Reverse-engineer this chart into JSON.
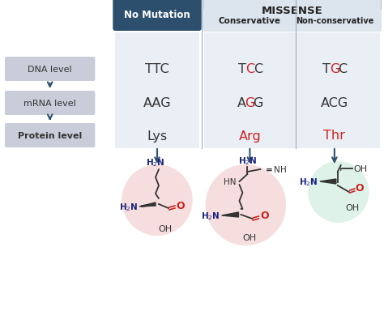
{
  "bg_color": "#ffffff",
  "missense_header": "MISSENSE",
  "no_mutation_label": "No Mutation",
  "conservative_label": "Conservative",
  "nonconservative_label": "Non-conservative",
  "row_labels": [
    "DNA level",
    "mRNA level",
    "Protein level"
  ],
  "dna_row": [
    [
      {
        "t": "TTC",
        "c": "#333333"
      }
    ],
    [
      {
        "t": "T",
        "c": "#333333"
      },
      {
        "t": "C",
        "c": "#cc2222"
      },
      {
        "t": "C",
        "c": "#333333"
      }
    ],
    [
      {
        "t": "T",
        "c": "#333333"
      },
      {
        "t": "G",
        "c": "#cc2222"
      },
      {
        "t": "C",
        "c": "#333333"
      }
    ]
  ],
  "mrna_row": [
    [
      {
        "t": "AAG",
        "c": "#333333"
      }
    ],
    [
      {
        "t": "A",
        "c": "#333333"
      },
      {
        "t": "G",
        "c": "#cc2222"
      },
      {
        "t": "G",
        "c": "#333333"
      }
    ],
    [
      {
        "t": "ACG",
        "c": "#333333"
      }
    ]
  ],
  "protein_row": [
    {
      "text": "Lys",
      "color": "#333333"
    },
    {
      "text": "Arg",
      "color": "#cc2222"
    },
    {
      "text": "Thr",
      "color": "#cc2222"
    }
  ],
  "no_mutation_bg": "#2d4f6e",
  "no_mutation_fg": "#ffffff",
  "missense_bg": "#dce4ed",
  "conservative_bg": "#dce4ed",
  "nonconservative_bg": "#dce4ed",
  "col_bg": "#e8edf4",
  "row_label_bg": "#c8cdd9",
  "row_label_fg": "#333333",
  "arrow_color": "#2d4f6e",
  "circle_lys": "#f2c4c4",
  "circle_arg": "#f2c4c4",
  "circle_thr": "#c4e8d8",
  "mol_dark": "#1a237e",
  "mol_black": "#333333",
  "mol_red": "#cc2222"
}
